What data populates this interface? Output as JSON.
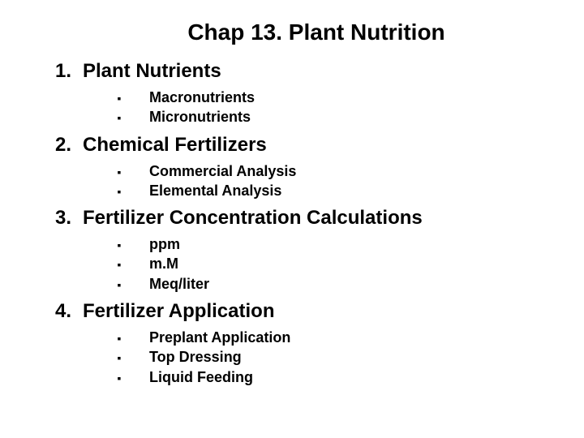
{
  "title": "Chap 13. Plant Nutrition",
  "style": {
    "background_color": "#ffffff",
    "text_color": "#000000",
    "font_family": "Arial",
    "title_fontsize": 28,
    "section_fontsize": 24,
    "subitem_fontsize": 18,
    "bullet_glyph": "▪"
  },
  "sections": [
    {
      "number": "1.",
      "heading": "Plant Nutrients",
      "items": [
        "Macronutrients",
        "Micronutrients"
      ]
    },
    {
      "number": "2.",
      "heading": "Chemical Fertilizers",
      "items": [
        "Commercial Analysis",
        "Elemental Analysis"
      ]
    },
    {
      "number": "3.",
      "heading": "Fertilizer Concentration Calculations",
      "items": [
        "ppm",
        "m.M",
        "Meq/liter"
      ]
    },
    {
      "number": "4.",
      "heading": "Fertilizer Application",
      "items": [
        "Preplant Application",
        "Top Dressing",
        "Liquid Feeding"
      ]
    }
  ]
}
